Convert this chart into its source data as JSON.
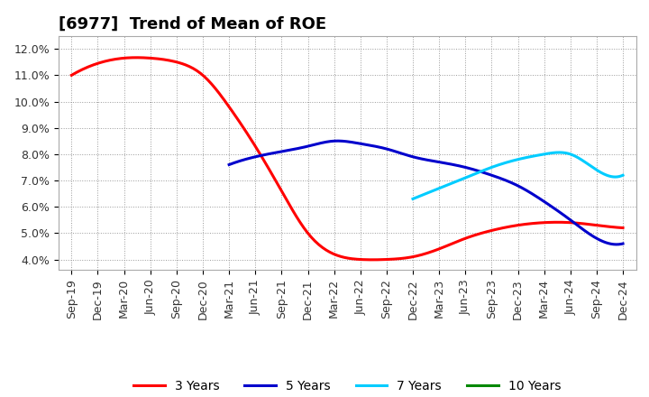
{
  "title": "[6977]  Trend of Mean of ROE",
  "ylim": [
    0.036,
    0.125
  ],
  "yticks": [
    0.04,
    0.05,
    0.06,
    0.07,
    0.08,
    0.09,
    0.1,
    0.11,
    0.12
  ],
  "ytick_labels": [
    "4.0%",
    "5.0%",
    "6.0%",
    "7.0%",
    "8.0%",
    "9.0%",
    "10.0%",
    "11.0%",
    "12.0%"
  ],
  "xtick_labels": [
    "Sep-19",
    "Dec-19",
    "Mar-20",
    "Jun-20",
    "Sep-20",
    "Dec-20",
    "Mar-21",
    "Jun-21",
    "Sep-21",
    "Dec-21",
    "Mar-22",
    "Jun-22",
    "Sep-22",
    "Dec-22",
    "Mar-23",
    "Jun-23",
    "Sep-23",
    "Dec-23",
    "Mar-24",
    "Jun-24",
    "Sep-24",
    "Dec-24"
  ],
  "line_3yr": {
    "color": "#FF0000",
    "label": "3 Years",
    "x": [
      0,
      1,
      2,
      3,
      4,
      5,
      6,
      7,
      8,
      9,
      10,
      11,
      12,
      13,
      14,
      15,
      16,
      17,
      18,
      19,
      20,
      21
    ],
    "y": [
      0.11,
      0.1145,
      0.1165,
      0.1165,
      0.115,
      0.11,
      0.098,
      0.083,
      0.066,
      0.05,
      0.042,
      0.04,
      0.04,
      0.041,
      0.044,
      0.048,
      0.051,
      0.053,
      0.054,
      0.054,
      0.053,
      0.052
    ]
  },
  "line_5yr": {
    "color": "#0000CC",
    "label": "5 Years",
    "x": [
      6,
      7,
      8,
      9,
      10,
      11,
      12,
      13,
      14,
      15,
      16,
      17,
      18,
      19,
      20,
      21
    ],
    "y": [
      0.076,
      0.079,
      0.081,
      0.083,
      0.085,
      0.084,
      0.082,
      0.079,
      0.077,
      0.075,
      0.072,
      0.068,
      0.062,
      0.055,
      0.048,
      0.046
    ]
  },
  "line_7yr": {
    "color": "#00CCFF",
    "label": "7 Years",
    "x": [
      13,
      14,
      15,
      16,
      17,
      18,
      19,
      20,
      21
    ],
    "y": [
      0.063,
      0.067,
      0.071,
      0.075,
      0.078,
      0.08,
      0.08,
      0.074,
      0.072
    ]
  },
  "line_10yr": {
    "color": "#008800",
    "label": "10 Years",
    "x": [],
    "y": []
  },
  "background_color": "#FFFFFF",
  "plot_bg_color": "#FFFFFF",
  "grid_color": "#999999",
  "title_fontsize": 13,
  "legend_fontsize": 10,
  "tick_fontsize": 9,
  "linewidth": 2.2
}
